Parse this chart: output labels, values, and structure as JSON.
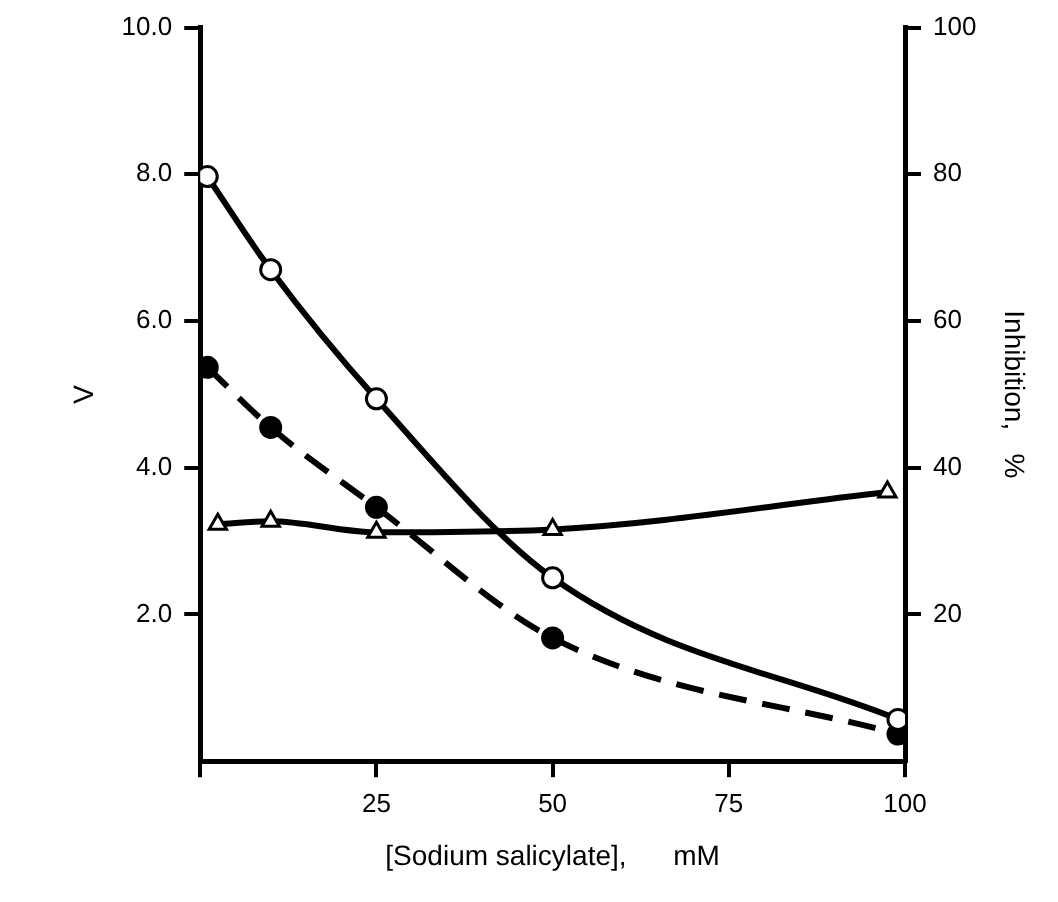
{
  "chart_data": {
    "type": "line",
    "xlabel": "[Sodium salicylate],      mM",
    "ylabel": "V",
    "y2label": "Inhibition,   %",
    "xlim": [
      0,
      100
    ],
    "xticks": [
      {
        "value": 0,
        "label": null
      },
      25,
      50,
      75,
      100
    ],
    "ylim": [
      0,
      10
    ],
    "yticks": [
      {
        "value": 2,
        "label": "2.0"
      },
      {
        "value": 4,
        "label": "4.0"
      },
      {
        "value": 6,
        "label": "6.0"
      },
      {
        "value": 8,
        "label": "8.0"
      },
      {
        "value": 10,
        "label": "10.0"
      }
    ],
    "y2lim": [
      0,
      100
    ],
    "y2ticks": [
      20,
      40,
      60,
      80,
      100
    ],
    "grid": false,
    "legend": false,
    "series": [
      {
        "color": "#000000",
        "marker": "circle",
        "line_style": "solid",
        "x": [
          1,
          10,
          25,
          50,
          99
        ],
        "values": [
          7.97,
          6.7,
          4.94,
          2.5,
          0.57
        ]
      },
      {
        "color": "#000000",
        "marker": "circle",
        "line_style": "dashed",
        "x": [
          1,
          10,
          25,
          50,
          99
        ],
        "values": [
          5.37,
          4.55,
          3.46,
          1.68,
          0.37
        ]
      },
      {
        "color": "#000000",
        "marker": "triangle",
        "line_style": "solid",
        "axis": "y2",
        "x": [
          2.5,
          10,
          25,
          50,
          97.5
        ],
        "values": [
          32.3,
          32.7,
          31.2,
          31.6,
          36.7
        ]
      }
    ]
  }
}
